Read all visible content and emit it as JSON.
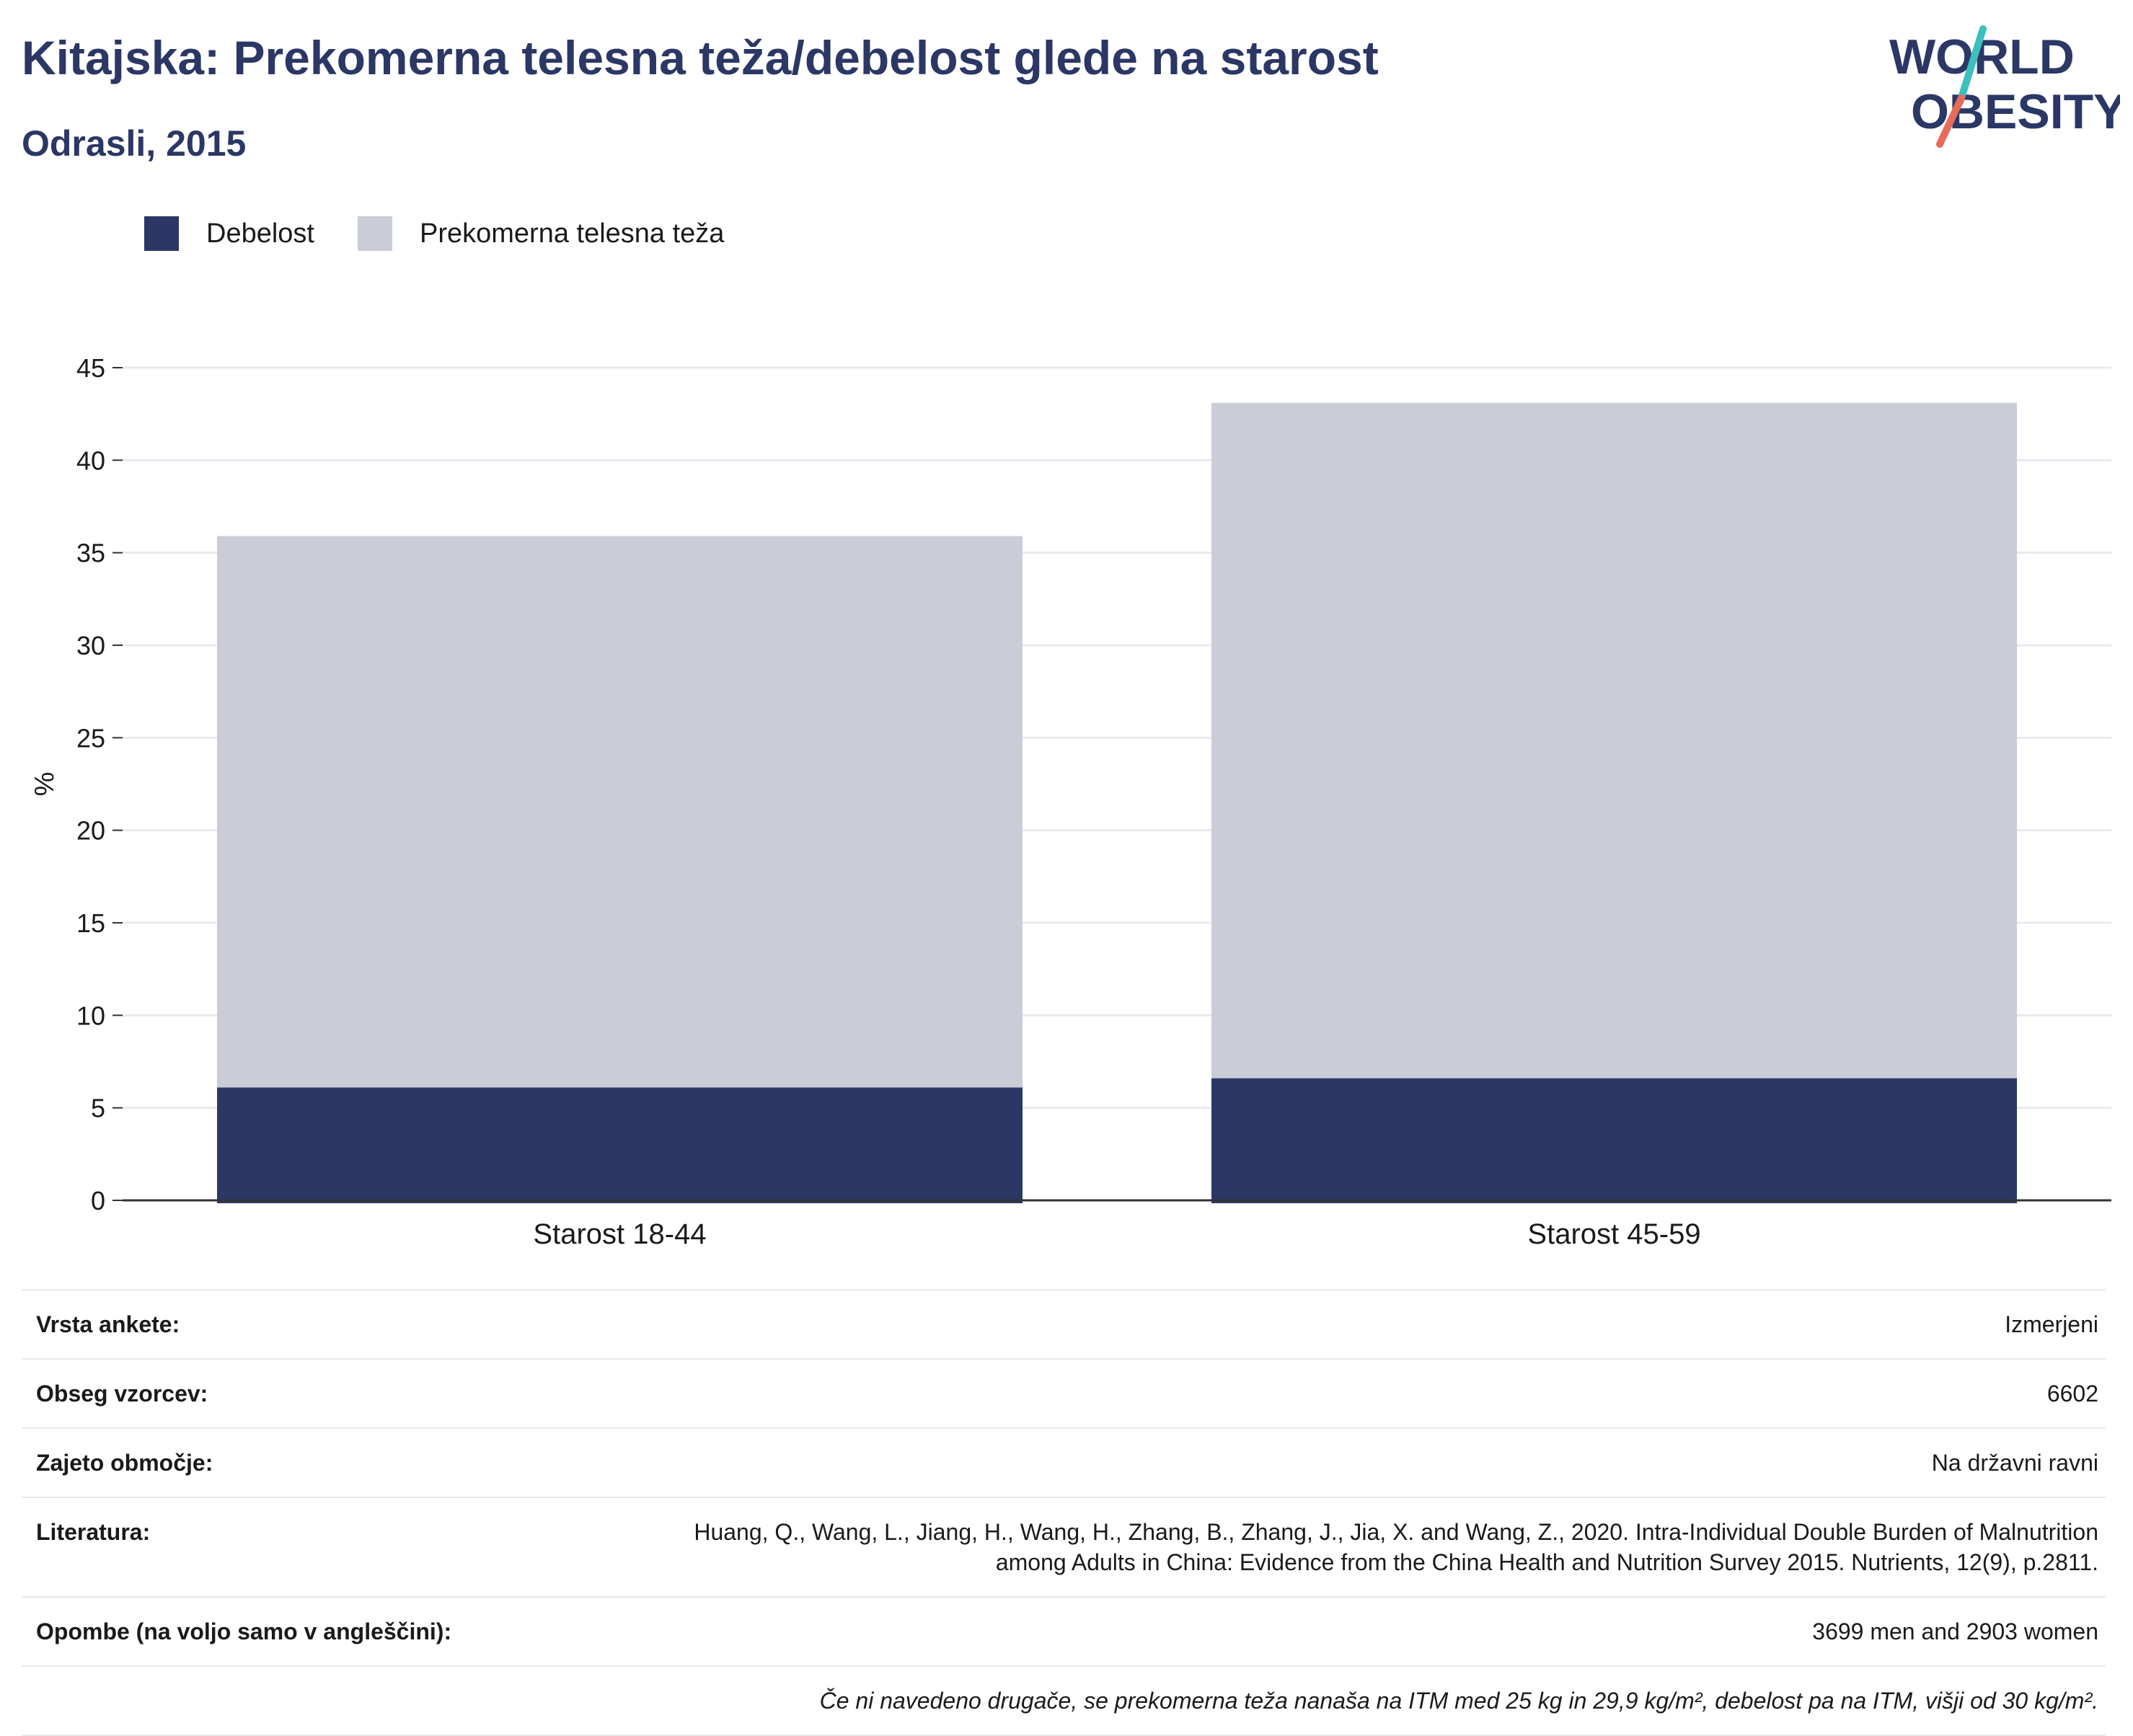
{
  "header": {
    "title": "Kitajska: Prekomerna telesna teža/debelost glede na starost",
    "subtitle": "Odrasli, 2015"
  },
  "logo": {
    "line1": "WORLD",
    "line2": "OBESITY",
    "colors": {
      "text": "#2b3765",
      "slash_top": "#3bbfbf",
      "slash_bottom": "#e86a5a"
    }
  },
  "legend": [
    {
      "label": "Debelost",
      "color": "#2b3765"
    },
    {
      "label": "Prekomerna telesna teža",
      "color": "#caccd8"
    }
  ],
  "chart_data": {
    "type": "bar",
    "stacked": true,
    "categories": [
      "Starost 18-44",
      "Starost 45-59"
    ],
    "series": [
      {
        "name": "Debelost",
        "values": [
          6.1,
          6.6
        ],
        "color": "#2b3765"
      },
      {
        "name": "Prekomerna telesna teža",
        "values": [
          29.8,
          36.5
        ],
        "color": "#caccd8"
      }
    ],
    "ylabel": "%",
    "ylim": [
      0,
      45
    ],
    "yticks": [
      0,
      5,
      10,
      15,
      20,
      25,
      30,
      35,
      40,
      45
    ],
    "grid": true,
    "legend_position": "top-left"
  },
  "info": {
    "rows": [
      {
        "label": "Vrsta ankete:",
        "value": "Izmerjeni"
      },
      {
        "label": "Obseg vzorcev:",
        "value": "6602"
      },
      {
        "label": "Zajeto območje:",
        "value": "Na državni ravni"
      },
      {
        "label": "Literatura:",
        "value_line1": "Huang, Q., Wang, L., Jiang, H., Wang, H., Zhang, B., Zhang, J., Jia, X. and Wang, Z., 2020. Intra-Individual Double Burden of Malnutrition",
        "value_line2": "among Adults in China: Evidence from the China Health and Nutrition Survey 2015. Nutrients, 12(9), p.2811."
      },
      {
        "label": "Opombe (na voljo samo v angleščini):",
        "value": "3699 men and 2903 women"
      }
    ],
    "footnote": "Če ni navedeno drugače, se prekomerna teža nanaša na ITM med 25 kg in 29,9 kg/m², debelost pa na ITM, višji od 30 kg/m²."
  }
}
